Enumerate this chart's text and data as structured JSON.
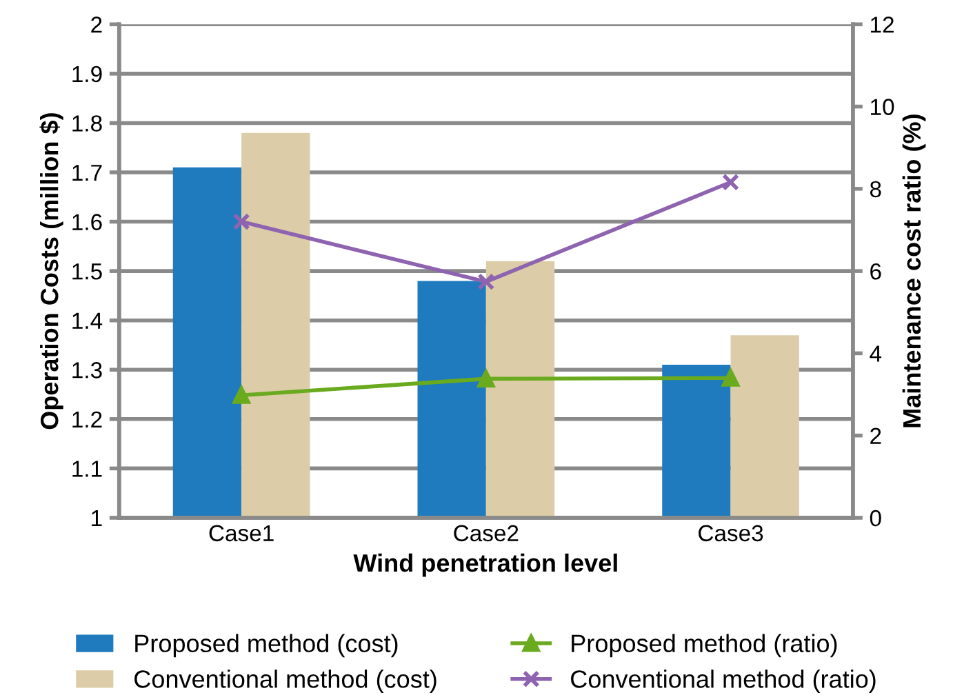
{
  "chart_data": {
    "type": "bar",
    "xlabel": "Wind penetration level",
    "ylabel": "Operation Costs (million $)",
    "y2label": "Maintenance cost ratio (%)",
    "categories": [
      "Case1",
      "Case2",
      "Case3"
    ],
    "series": [
      {
        "name": "Proposed method (cost)",
        "color": "#1f7bbd",
        "values": [
          1.71,
          1.48,
          1.31
        ]
      },
      {
        "name": "Conventional method (cost)",
        "color": "#dccda8",
        "values": [
          1.78,
          1.52,
          1.37
        ]
      },
      {
        "name": "Proposed method (ratio)",
        "type": "line",
        "axis": "y2",
        "marker": "triangle",
        "color": "#6aaa1e",
        "values": [
          2.98,
          3.38,
          3.4
        ]
      },
      {
        "name": "Conventional method (ratio)",
        "type": "line",
        "axis": "y2",
        "marker": "cross",
        "color": "#8e63b0",
        "values": [
          7.2,
          5.74,
          8.16
        ]
      }
    ],
    "ylim": [
      1,
      2
    ],
    "yticks": [
      1,
      1.1,
      1.2,
      1.3,
      1.4,
      1.5,
      1.6,
      1.7,
      1.8,
      1.9,
      2
    ],
    "y2lim": [
      0,
      12
    ],
    "y2ticks": [
      0,
      2,
      4,
      6,
      8,
      10,
      12
    ],
    "grid": "y",
    "legend": "bottom"
  }
}
